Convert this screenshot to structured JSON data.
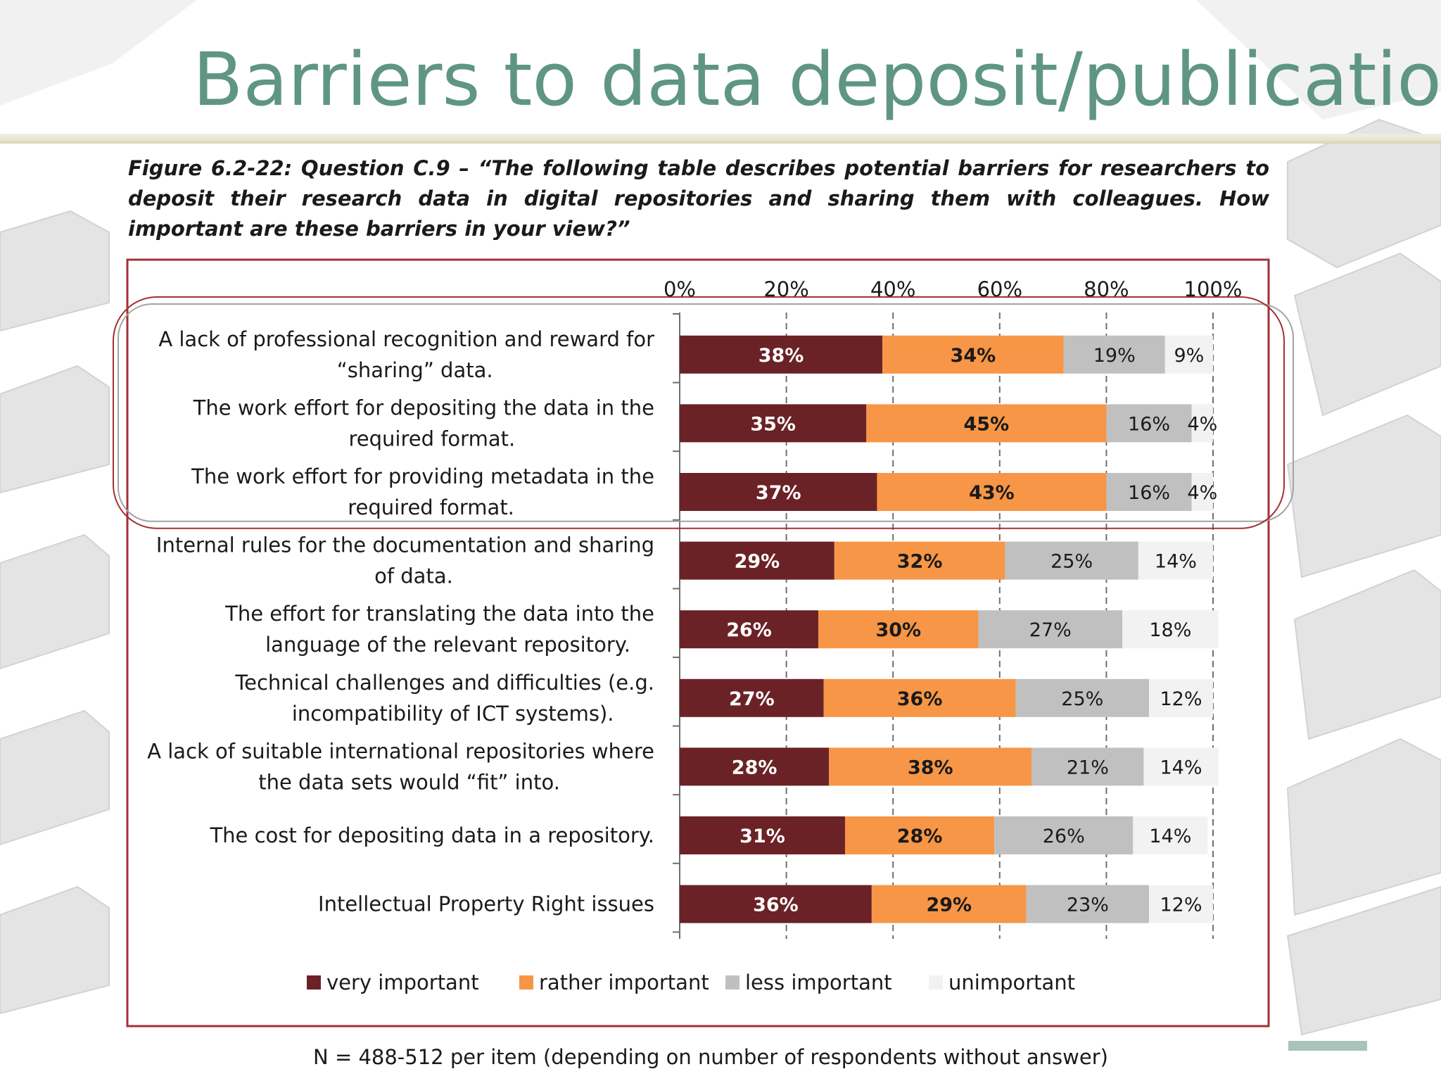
{
  "slide": {
    "title": "Barriers to data deposit/publication",
    "figure_caption": "Figure 6.2-22: Question C.9 – “The following table describes potential barriers for researchers to deposit their research data in digital repositories and sharing them with colleagues. How important are these barriers in your view?”",
    "footnote": "N = 488-512 per item (depending on number of respondents without answer)"
  },
  "colors": {
    "very_important": "#6b2226",
    "rather_important": "#f79646",
    "less_important": "#c0c0c0",
    "unimportant": "#f2f2f2",
    "frame": "#a33035",
    "title": "#5f9585"
  },
  "chart_data": {
    "type": "bar",
    "orientation": "horizontal",
    "stacked": true,
    "x_ticks": [
      "0%",
      "20%",
      "40%",
      "60%",
      "80%",
      "100%"
    ],
    "xlim": [
      0,
      100
    ],
    "grid": "vertical dashed",
    "legend_position": "bottom",
    "categories": [
      [
        "A lack of professional recognition and reward for",
        "“sharing” data."
      ],
      [
        "The work effort for depositing the data in the",
        "required format."
      ],
      [
        "The work effort for providing metadata in the",
        "required format."
      ],
      [
        "Internal rules for the documentation and sharing",
        "of data."
      ],
      [
        "The effort for translating the data into the",
        "language of the relevant repository."
      ],
      [
        "Technical challenges and difficulties (e.g.",
        "incompatibility of ICT systems)."
      ],
      [
        "A lack of suitable international repositories where",
        "the data sets would “fit” into."
      ],
      [
        "The cost for depositing data in a repository."
      ],
      [
        "Intellectual Property Right issues"
      ]
    ],
    "series": [
      {
        "name": "very important",
        "values": [
          38,
          35,
          37,
          29,
          26,
          27,
          28,
          31,
          36
        ]
      },
      {
        "name": "rather important",
        "values": [
          34,
          45,
          43,
          32,
          30,
          36,
          38,
          28,
          29
        ]
      },
      {
        "name": "less important",
        "values": [
          19,
          16,
          16,
          25,
          27,
          25,
          21,
          26,
          23
        ]
      },
      {
        "name": "unimportant",
        "values": [
          9,
          4,
          4,
          14,
          18,
          12,
          14,
          14,
          12
        ]
      }
    ],
    "highlighted_rows": [
      0,
      1,
      2
    ]
  }
}
